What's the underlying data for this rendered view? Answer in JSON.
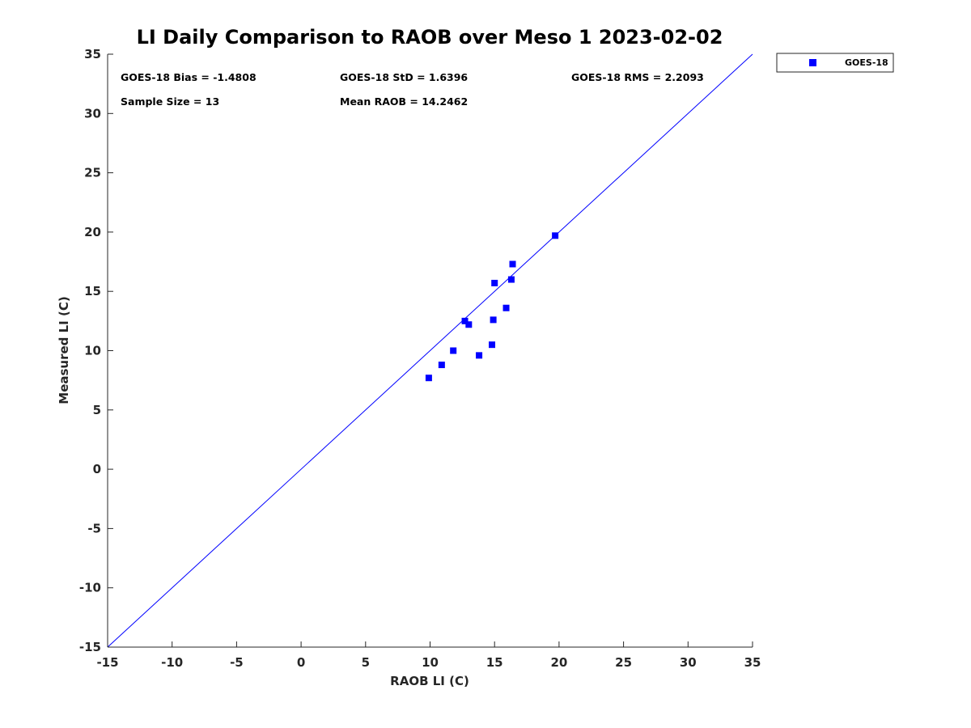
{
  "chart_data": {
    "type": "scatter",
    "title": "LI Daily Comparison to RAOB over Meso 1 2023-02-02",
    "xlabel": "RAOB LI (C)",
    "ylabel": "Measured LI (C)",
    "xlim": [
      -15,
      35
    ],
    "ylim": [
      -15,
      35
    ],
    "xticks": [
      "-15",
      "-10",
      "-5",
      "0",
      "5",
      "10",
      "15",
      "20",
      "25",
      "30",
      "35"
    ],
    "yticks": [
      "-15",
      "-10",
      "-5",
      "0",
      "5",
      "10",
      "15",
      "20",
      "25",
      "30",
      "35"
    ],
    "grid": false,
    "reference_line": {
      "slope": 1,
      "intercept": 0,
      "color": "#0000ff"
    },
    "legend": {
      "position": "top-right-outside",
      "entries": [
        "GOES-18"
      ]
    },
    "series": [
      {
        "name": "GOES-18",
        "color": "#0000ff",
        "marker": "square",
        "points": [
          [
            9.9,
            7.7
          ],
          [
            10.9,
            8.8
          ],
          [
            11.8,
            10.0
          ],
          [
            12.7,
            12.5
          ],
          [
            13.0,
            12.2
          ],
          [
            13.8,
            9.6
          ],
          [
            14.8,
            10.5
          ],
          [
            14.9,
            12.6
          ],
          [
            15.0,
            15.7
          ],
          [
            15.9,
            13.6
          ],
          [
            16.3,
            16.0
          ],
          [
            16.4,
            17.3
          ],
          [
            19.7,
            19.7
          ]
        ]
      }
    ],
    "annotations": {
      "bias": "GOES-18 Bias = -1.4808",
      "std": "GOES-18 StD = 1.6396",
      "rms": "GOES-18 RMS = 2.2093",
      "sample_size": "Sample Size = 13",
      "mean_raob": "Mean RAOB = 14.2462"
    }
  }
}
